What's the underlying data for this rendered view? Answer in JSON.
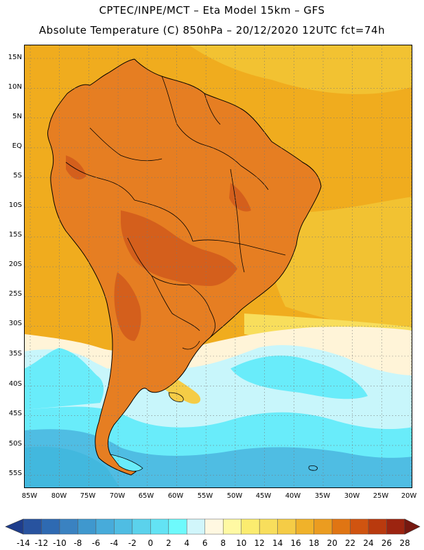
{
  "header": {
    "title_line1": "CPTEC/INPE/MCT –  Eta Model 15km – GFS",
    "title_line2": "Absolute Temperature (C) 850hPa – 20/12/2020 12UTC fct=74h"
  },
  "map": {
    "region": "South America",
    "lat_labels": [
      "15N",
      "10N",
      "5N",
      "EQ",
      "5S",
      "10S",
      "15S",
      "20S",
      "25S",
      "30S",
      "35S",
      "40S",
      "45S",
      "50S",
      "55S"
    ],
    "lon_labels": [
      "85W",
      "80W",
      "75W",
      "70W",
      "65W",
      "60W",
      "55W",
      "50W",
      "45W",
      "40W",
      "35W",
      "30W",
      "25W",
      "20W"
    ],
    "colors": {
      "ocean_warm": "#f0ac1e",
      "ocean_mid": "#f2c232",
      "land_hot": "#e67e22",
      "land_hotter": "#d45f1c",
      "cool_cream": "#fff4d8",
      "cool_pale_cyan": "#c8f6fb",
      "cool_cyan": "#69ecfa",
      "cold_blue": "#42b8de",
      "coast": "#000000",
      "grid": "#777777"
    }
  },
  "colorbar": {
    "ticks": [
      "-14",
      "-12",
      "-10",
      "-8",
      "-6",
      "-4",
      "-2",
      "0",
      "2",
      "4",
      "6",
      "8",
      "10",
      "12",
      "14",
      "16",
      "18",
      "20",
      "22",
      "24",
      "26",
      "28"
    ],
    "colors": [
      "#1e3d8c",
      "#28539f",
      "#2e6ab2",
      "#3a82c1",
      "#3f98ce",
      "#47abda",
      "#4fbde3",
      "#5bd2ec",
      "#63e3f4",
      "#6efafc",
      "#d1f6fb",
      "#fff8e1",
      "#fff9a3",
      "#fbec6f",
      "#f8de5c",
      "#f5cc46",
      "#f0b22a",
      "#eb9c20",
      "#e07513",
      "#d05410",
      "#b93a0e",
      "#9c2410",
      "#761810"
    ]
  }
}
